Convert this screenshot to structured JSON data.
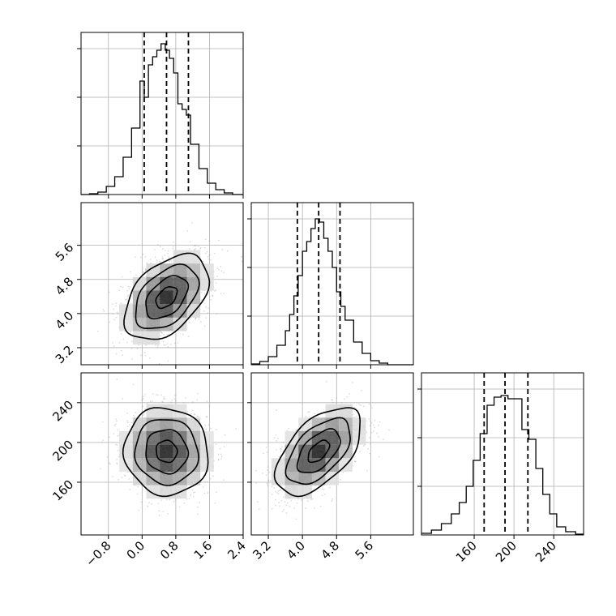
{
  "figure": {
    "kind": "corner-plot",
    "n_params": 3,
    "ticks_colored": "#000000",
    "grid": true,
    "hist_color": "#000000",
    "point_color": "#9a9a9a"
  },
  "chart_data": {
    "type": "corner",
    "title": "",
    "parameters": [
      {
        "index": 0,
        "range": [
          -1.45,
          2.4
        ],
        "tick_labels": [
          "−0.8",
          "0.0",
          "0.8",
          "1.6",
          "2.4"
        ],
        "ticks": [
          -0.8,
          0.0,
          0.8,
          1.6,
          2.4
        ],
        "quantiles": [
          0.05,
          0.58,
          1.1
        ],
        "hist": {
          "bin_edges": [
            -1.45,
            -1.25,
            -1.05,
            -0.85,
            -0.65,
            -0.45,
            -0.25,
            -0.05,
            0.05,
            0.15,
            0.25,
            0.35,
            0.45,
            0.55,
            0.65,
            0.75,
            0.85,
            0.95,
            1.05,
            1.15,
            1.35,
            1.55,
            1.75,
            1.95,
            2.15,
            2.4
          ],
          "counts": [
            0,
            1,
            3,
            10,
            22,
            46,
            82,
            140,
            120,
            160,
            170,
            178,
            186,
            178,
            168,
            150,
            112,
            105,
            98,
            62,
            32,
            14,
            6,
            2,
            0
          ],
          "ymax": 190,
          "yticks": [
            60,
            120,
            180
          ]
        }
      },
      {
        "index": 1,
        "range": [
          2.8,
          6.6
        ],
        "tick_labels": [
          "3.2",
          "4.0",
          "4.8",
          "5.6"
        ],
        "ticks": [
          3.2,
          4.0,
          4.8,
          5.6
        ],
        "quantiles": [
          3.88,
          4.38,
          4.88
        ],
        "hist": {
          "bin_edges": [
            2.8,
            3.0,
            3.2,
            3.4,
            3.6,
            3.7,
            3.8,
            3.9,
            4.0,
            4.1,
            4.2,
            4.3,
            4.4,
            4.5,
            4.6,
            4.7,
            4.8,
            4.9,
            5.0,
            5.2,
            5.4,
            5.6,
            5.8,
            6.0,
            6.6
          ],
          "counts": [
            1,
            4,
            10,
            24,
            42,
            62,
            85,
            110,
            140,
            152,
            168,
            180,
            176,
            156,
            140,
            120,
            90,
            72,
            55,
            28,
            14,
            5,
            2,
            0
          ],
          "ymax": 190,
          "yticks": [
            60,
            120,
            180
          ]
        }
      },
      {
        "index": 2,
        "range": [
          107,
          270
        ],
        "tick_labels": [
          "160",
          "200",
          "240"
        ],
        "ticks": [
          160,
          200,
          240
        ],
        "quantiles": [
          170,
          191,
          214
        ],
        "hist": {
          "bin_edges": [
            107,
            117,
            127,
            137,
            145,
            152,
            159,
            166,
            173,
            180,
            187,
            194,
            201,
            208,
            215,
            222,
            229,
            236,
            243,
            252,
            262,
            270
          ],
          "counts": [
            2,
            6,
            14,
            26,
            40,
            60,
            92,
            125,
            160,
            170,
            172,
            168,
            168,
            130,
            118,
            82,
            50,
            26,
            10,
            4,
            1
          ],
          "ymax": 190,
          "yticks": [
            60,
            120,
            180
          ]
        }
      }
    ],
    "pairs": [
      {
        "x": 0,
        "y": 1,
        "mean": [
          0.58,
          4.38
        ],
        "sd": [
          0.5,
          0.5
        ],
        "rho": 0.45
      },
      {
        "x": 0,
        "y": 2,
        "mean": [
          0.58,
          191
        ],
        "sd": [
          0.5,
          22
        ],
        "rho": -0.05
      },
      {
        "x": 1,
        "y": 2,
        "mean": [
          4.38,
          191
        ],
        "sd": [
          0.5,
          22
        ],
        "rho": 0.55
      }
    ],
    "contour_levels": [
      0.5,
      1.0,
      1.5,
      2.0
    ]
  }
}
